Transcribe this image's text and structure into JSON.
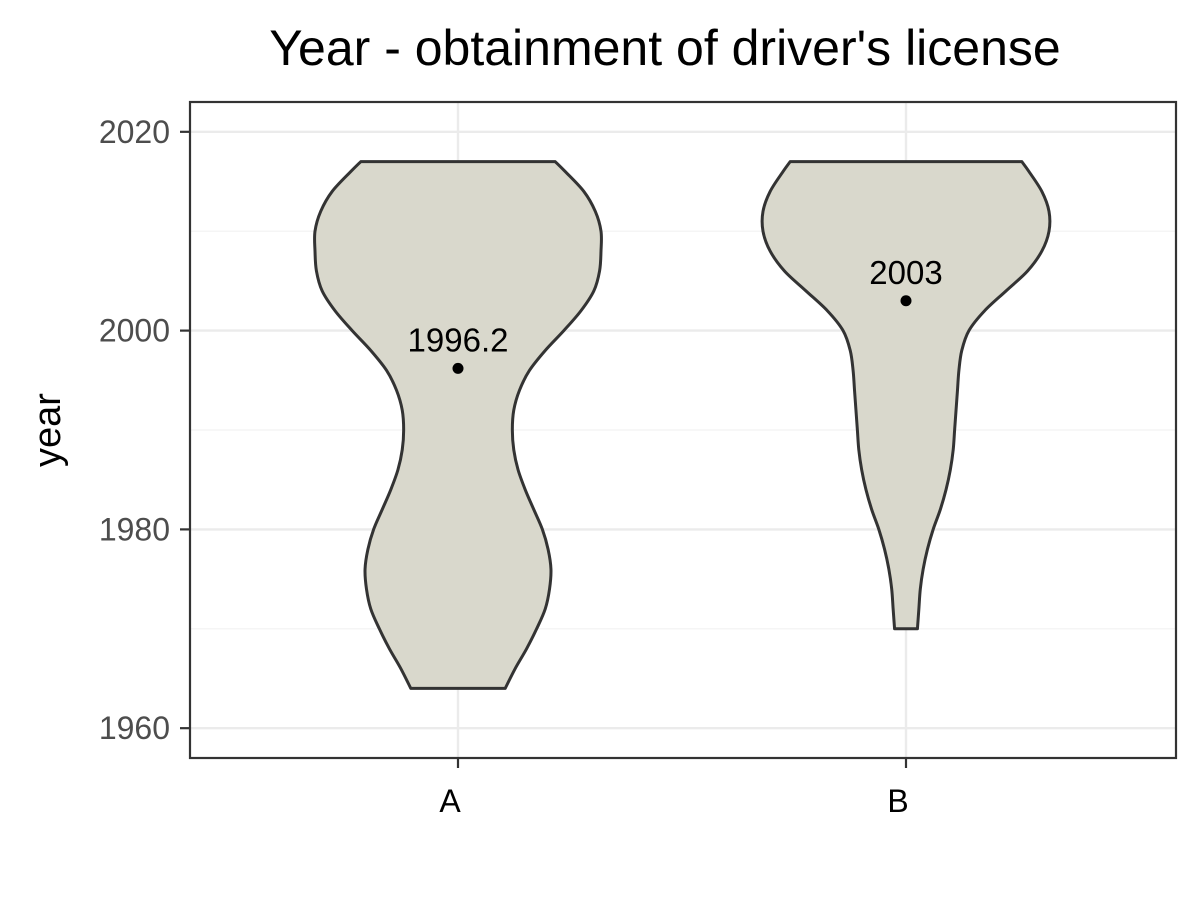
{
  "chart_data": {
    "type": "violin",
    "title": "Year - obtainment of driver's license",
    "xlabel": "",
    "ylabel": "year",
    "categories": [
      "A",
      "B"
    ],
    "ylim": [
      1957,
      2023
    ],
    "yticks": [
      1960,
      1980,
      2000,
      2020
    ],
    "grid": true,
    "legend": "none",
    "fill_color": "#d9d8cc",
    "outline_color": "#333333",
    "groups": [
      {
        "category": "A",
        "min": 1964,
        "max": 2017,
        "mean": 1996.2,
        "mean_label": "1996.2",
        "density_profile": [
          [
            1964,
            0.33
          ],
          [
            1966,
            0.4
          ],
          [
            1968,
            0.48
          ],
          [
            1970,
            0.55
          ],
          [
            1972,
            0.61
          ],
          [
            1974,
            0.64
          ],
          [
            1976,
            0.65
          ],
          [
            1978,
            0.63
          ],
          [
            1980,
            0.59
          ],
          [
            1982,
            0.53
          ],
          [
            1984,
            0.47
          ],
          [
            1986,
            0.42
          ],
          [
            1988,
            0.39
          ],
          [
            1990,
            0.38
          ],
          [
            1992,
            0.39
          ],
          [
            1994,
            0.43
          ],
          [
            1996,
            0.5
          ],
          [
            1998,
            0.61
          ],
          [
            2000,
            0.74
          ],
          [
            2002,
            0.86
          ],
          [
            2004,
            0.95
          ],
          [
            2006,
            0.99
          ],
          [
            2008,
            1.0
          ],
          [
            2010,
            1.0
          ],
          [
            2012,
            0.96
          ],
          [
            2014,
            0.88
          ],
          [
            2016,
            0.75
          ],
          [
            2017,
            0.68
          ]
        ]
      },
      {
        "category": "B",
        "min": 1970,
        "max": 2017,
        "mean": 2003,
        "mean_label": "2003",
        "density_profile": [
          [
            1970,
            0.08
          ],
          [
            1972,
            0.09
          ],
          [
            1974,
            0.1
          ],
          [
            1976,
            0.12
          ],
          [
            1978,
            0.15
          ],
          [
            1980,
            0.19
          ],
          [
            1982,
            0.24
          ],
          [
            1984,
            0.28
          ],
          [
            1986,
            0.31
          ],
          [
            1988,
            0.33
          ],
          [
            1990,
            0.34
          ],
          [
            1992,
            0.35
          ],
          [
            1994,
            0.36
          ],
          [
            1996,
            0.37
          ],
          [
            1998,
            0.39
          ],
          [
            2000,
            0.44
          ],
          [
            2002,
            0.55
          ],
          [
            2004,
            0.7
          ],
          [
            2006,
            0.85
          ],
          [
            2008,
            0.95
          ],
          [
            2010,
            1.0
          ],
          [
            2012,
            1.0
          ],
          [
            2014,
            0.95
          ],
          [
            2016,
            0.86
          ],
          [
            2017,
            0.81
          ]
        ]
      }
    ]
  }
}
